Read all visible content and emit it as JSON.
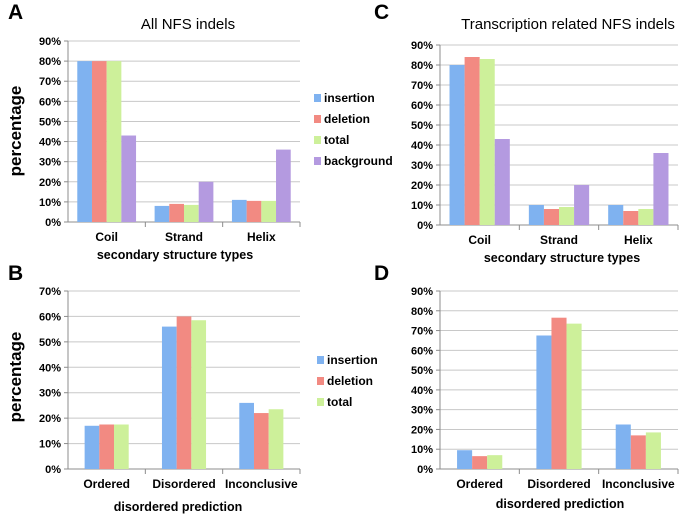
{
  "colors": {
    "insertion": "#7fb2f0",
    "deletion": "#f28a82",
    "total": "#cdf09a",
    "background": "#b49ae0",
    "grid": "#c8c8c8",
    "axis": "#8c8c8c"
  },
  "chart_data": [
    {
      "panel": "A",
      "type": "bar",
      "title": "All NFS indels",
      "xlabel": "secondary structure types",
      "ylabel": "percentage",
      "ylim": [
        0,
        90
      ],
      "yticks": [
        "0%",
        "10%",
        "20%",
        "30%",
        "40%",
        "50%",
        "60%",
        "70%",
        "80%",
        "90%"
      ],
      "categories": [
        "Coil",
        "Strand",
        "Helix"
      ],
      "series": [
        {
          "name": "insertion",
          "values": [
            80,
            8,
            11
          ]
        },
        {
          "name": "deletion",
          "values": [
            80,
            9,
            10.5
          ]
        },
        {
          "name": "total",
          "values": [
            80,
            8.5,
            10.5
          ]
        },
        {
          "name": "background",
          "values": [
            43,
            20,
            36
          ]
        }
      ],
      "legend": "right",
      "grid": true
    },
    {
      "panel": "C",
      "type": "bar",
      "title": "Transcription related NFS indels",
      "xlabel": "secondary structure types",
      "ylabel": "",
      "ylim": [
        0,
        90
      ],
      "yticks": [
        "0%",
        "10%",
        "20%",
        "30%",
        "40%",
        "50%",
        "60%",
        "70%",
        "80%",
        "90%"
      ],
      "categories": [
        "Coil",
        "Strand",
        "Helix"
      ],
      "series": [
        {
          "name": "insertion",
          "values": [
            80,
            10,
            10
          ]
        },
        {
          "name": "deletion",
          "values": [
            84,
            8,
            7
          ]
        },
        {
          "name": "total",
          "values": [
            83,
            9,
            8
          ]
        },
        {
          "name": "background",
          "values": [
            43,
            20,
            36
          ]
        }
      ],
      "legend": "none",
      "grid": true
    },
    {
      "panel": "B",
      "type": "bar",
      "title": "",
      "xlabel": "disordered prediction",
      "ylabel": "percentage",
      "ylim": [
        0,
        70
      ],
      "yticks": [
        "0%",
        "10%",
        "20%",
        "30%",
        "40%",
        "50%",
        "60%",
        "70%"
      ],
      "categories": [
        "Ordered",
        "Disordered",
        "Inconclusive"
      ],
      "series": [
        {
          "name": "insertion",
          "values": [
            17,
            56,
            26
          ]
        },
        {
          "name": "deletion",
          "values": [
            17.5,
            60,
            22
          ]
        },
        {
          "name": "total",
          "values": [
            17.5,
            58.5,
            23.5
          ]
        }
      ],
      "legend": "right",
      "grid": true
    },
    {
      "panel": "D",
      "type": "bar",
      "title": "",
      "xlabel": "disordered prediction",
      "ylabel": "",
      "ylim": [
        0,
        90
      ],
      "yticks": [
        "0%",
        "10%",
        "20%",
        "30%",
        "40%",
        "50%",
        "60%",
        "70%",
        "80%",
        "90%"
      ],
      "categories": [
        "Ordered",
        "Disordered",
        "Inconclusive"
      ],
      "series": [
        {
          "name": "insertion",
          "values": [
            9.5,
            67.5,
            22.5
          ]
        },
        {
          "name": "deletion",
          "values": [
            6.5,
            76.5,
            17
          ]
        },
        {
          "name": "total",
          "values": [
            7,
            73.5,
            18.5
          ]
        }
      ],
      "legend": "none",
      "grid": true
    }
  ]
}
